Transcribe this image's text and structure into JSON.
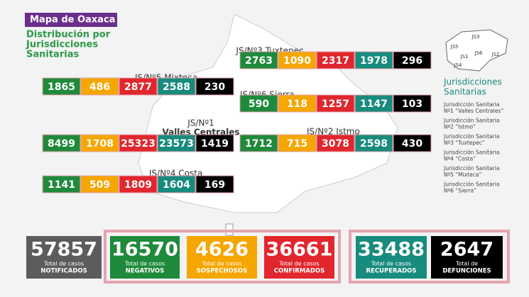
{
  "header": {
    "title": "Mapa de Oaxaca",
    "subtitle_lines": [
      "Distribución por",
      "Jurisdicciones",
      "Sanitarias"
    ]
  },
  "regions": [
    {
      "label_lines": [
        "JS/Nº3 Tuxtepec"
      ],
      "values": [
        2763,
        1090,
        2317,
        1978,
        296
      ]
    },
    {
      "label_lines": [
        "JS/Nº5 Mixteca"
      ],
      "values": [
        1865,
        486,
        2877,
        2588,
        230
      ]
    },
    {
      "label_lines": [
        "JS/Nº6 Sierra"
      ],
      "values": [
        590,
        118,
        1257,
        1147,
        103
      ]
    },
    {
      "label_lines": [
        "JS/Nº1",
        "Valles Centrales"
      ],
      "values": [
        8499,
        1708,
        25323,
        23573,
        1419
      ]
    },
    {
      "label_lines": [
        "JS/Nº2 Istmo"
      ],
      "values": [
        1712,
        715,
        3078,
        2598,
        430
      ]
    },
    {
      "label_lines": [
        "JS/Nº4 Costa"
      ],
      "values": [
        1141,
        509,
        1809,
        1604,
        169
      ]
    }
  ],
  "small_map_labels": [
    "JS5",
    "JS3",
    "JS6",
    "JS2",
    "JS1",
    "JS4"
  ],
  "legend": {
    "title_lines": [
      "Jurisdicciones",
      "Sanitarias"
    ],
    "entries": [
      [
        "Jurisdicción Sanitaria",
        "Nº1 “Valles Centrales”"
      ],
      [
        "Jurisdicción Sanitaria",
        "Nº2 “Istmo”"
      ],
      [
        "Jurisdicción Sanitaria",
        "Nº3 “Tuxtepec”"
      ],
      [
        "Jurisdicción Sanitaria",
        "Nº4 “Costa”"
      ],
      [
        "Jurisdicción Sanitaria",
        "Nº5 “Mixteca”"
      ],
      [
        "Jurisdicción Sanitaria",
        "Nº6 “Sierra”"
      ]
    ]
  },
  "totals": [
    {
      "value": 57857,
      "label_lines": [
        "Total de casos",
        "NOTIFICADOS"
      ]
    },
    {
      "value": 16570,
      "label_lines": [
        "Total de casos",
        "NEGATIVOS"
      ]
    },
    {
      "value": 4626,
      "label_lines": [
        "Total de casos",
        "SOSPECHOSOS"
      ]
    },
    {
      "value": 36661,
      "label_lines": [
        "Total de casos",
        "CONFIRMADOS"
      ]
    },
    {
      "value": 33488,
      "label_lines": [
        "Total de casos",
        "RECUPERADOS"
      ]
    },
    {
      "value": 2647,
      "label_lines": [
        "Total de",
        "DEFUNCIONES"
      ]
    }
  ]
}
